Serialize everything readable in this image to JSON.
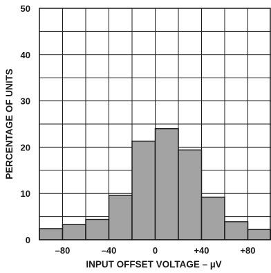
{
  "chart_data": {
    "type": "bar",
    "xlabel": "INPUT OFFSET VOLTAGE – µV",
    "ylabel": "PERCENTAGE OF UNITS",
    "xlim": [
      -100,
      100
    ],
    "ylim": [
      0,
      50
    ],
    "grid": true,
    "bins": [
      {
        "from": -100,
        "to": -80,
        "value": 2.4
      },
      {
        "from": -80,
        "to": -60,
        "value": 3.3
      },
      {
        "from": -60,
        "to": -40,
        "value": 4.4
      },
      {
        "from": -40,
        "to": -20,
        "value": 9.6
      },
      {
        "from": -20,
        "to": 0,
        "value": 21.3
      },
      {
        "from": 0,
        "to": 20,
        "value": 24.0
      },
      {
        "from": 20,
        "to": 40,
        "value": 19.4
      },
      {
        "from": 40,
        "to": 60,
        "value": 9.2
      },
      {
        "from": 60,
        "to": 80,
        "value": 3.9
      },
      {
        "from": 80,
        "to": 100,
        "value": 2.2
      }
    ],
    "x_ticks": [
      {
        "value": -80,
        "label": "–80"
      },
      {
        "value": -40,
        "label": "–40"
      },
      {
        "value": 0,
        "label": "0"
      },
      {
        "value": 40,
        "label": "+40"
      },
      {
        "value": 80,
        "label": "+80"
      }
    ],
    "y_ticks": [
      {
        "value": 0,
        "label": "0"
      },
      {
        "value": 10,
        "label": "10"
      },
      {
        "value": 20,
        "label": "20"
      },
      {
        "value": 30,
        "label": "30"
      },
      {
        "value": 40,
        "label": "40"
      },
      {
        "value": 50,
        "label": "50"
      }
    ],
    "y_minor_step": 5,
    "colors": {
      "bar_fill": "#a3a3a3",
      "bar_stroke": "#1a1a1a",
      "grid": "#1a1a1a",
      "text": "#1a1a1a"
    }
  }
}
